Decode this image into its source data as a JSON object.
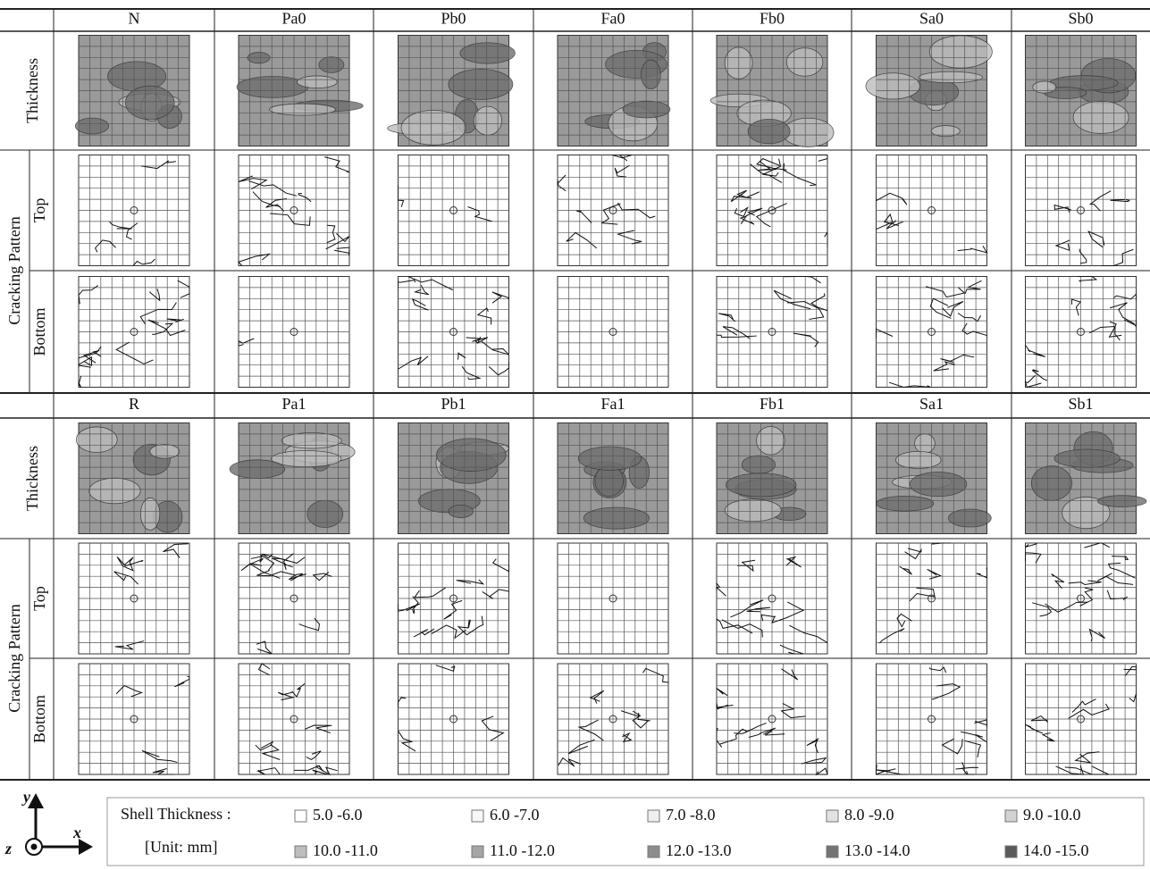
{
  "blocks": [
    {
      "columns": [
        "N",
        "Pa0",
        "Pb0",
        "Fa0",
        "Fb0",
        "Sa0",
        "Sb0"
      ]
    },
    {
      "columns": [
        "R",
        "Pa1",
        "Pb1",
        "Fa1",
        "Fb1",
        "Sa1",
        "Sb1"
      ]
    }
  ],
  "row_labels": {
    "thickness": "Thickness",
    "cracking": "Cracking Pattern",
    "top": "Top",
    "bottom": "Bottom"
  },
  "legend": {
    "title": "Shell Thickness :",
    "unit": "[Unit: mm]",
    "items": [
      {
        "label": "5.0 -6.0",
        "color": "#ffffff"
      },
      {
        "label": "6.0 -7.0",
        "color": "#f7f7f7"
      },
      {
        "label": "7.0 -8.0",
        "color": "#efefef"
      },
      {
        "label": "8.0 -9.0",
        "color": "#e2e2e2"
      },
      {
        "label": "9.0 -10.0",
        "color": "#d2d2d2"
      },
      {
        "label": "10.0 -11.0",
        "color": "#bdbdbd"
      },
      {
        "label": "11.0 -12.0",
        "color": "#a5a5a5"
      },
      {
        "label": "12.0 -13.0",
        "color": "#8c8c8c"
      },
      {
        "label": "13.0 -14.0",
        "color": "#737373"
      },
      {
        "label": "14.0 -15.0",
        "color": "#5a5a5a"
      }
    ]
  },
  "axes": {
    "y": "y",
    "z": "z",
    "x": "x"
  }
}
